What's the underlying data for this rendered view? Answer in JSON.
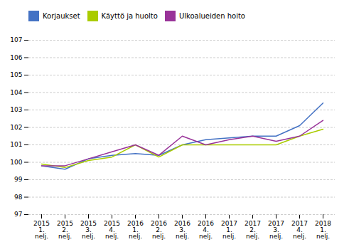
{
  "chart_data": {
    "type": "line",
    "categories": [
      "2015\n1.\nnelj.",
      "2015\n2.\nnelj.",
      "2015\n3.\nnelj.",
      "2015\n4.\nnelj.",
      "2016\n1.\nnelj.",
      "2016\n2.\nnelj.",
      "2016\n3.\nnelj.",
      "2016\n4.\nnelj.",
      "2017\n1.\nnelj.",
      "2017\n2.\nnelj.",
      "2017\n3.\nnelj.",
      "2017\n4.\nnelj.",
      "2018\n1.\nnelj."
    ],
    "series": [
      {
        "name": "Korjaukset",
        "color": "#4472C4",
        "values": [
          99.8,
          99.6,
          100.2,
          100.4,
          100.5,
          100.4,
          101.0,
          101.3,
          101.4,
          101.5,
          101.5,
          102.1,
          103.4
        ]
      },
      {
        "name": "Käyttö ja huolto",
        "color": "#AACC00",
        "values": [
          99.9,
          99.7,
          100.1,
          100.3,
          101.0,
          100.3,
          101.0,
          101.0,
          101.0,
          101.0,
          101.0,
          101.5,
          101.9
        ]
      },
      {
        "name": "Ulkoalueiden hoito",
        "color": "#993399",
        "values": [
          99.8,
          99.8,
          100.2,
          100.6,
          101.0,
          100.4,
          101.5,
          101.0,
          101.3,
          101.5,
          101.2,
          101.5,
          102.4
        ]
      }
    ],
    "ylim": [
      97,
      107
    ],
    "yticks": [
      97,
      98,
      99,
      100,
      101,
      102,
      103,
      104,
      105,
      106,
      107
    ],
    "grid": true,
    "legend": "upper left"
  }
}
